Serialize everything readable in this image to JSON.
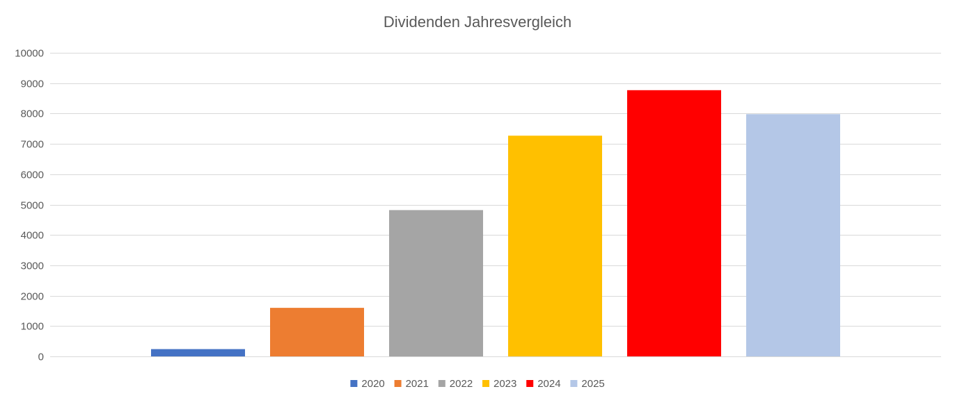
{
  "chart_data": {
    "type": "bar",
    "title": "Dividenden Jahresvergleich",
    "xlabel": "",
    "ylabel": "",
    "ylim": [
      0,
      10000
    ],
    "yticks": [
      0,
      1000,
      2000,
      3000,
      4000,
      5000,
      6000,
      7000,
      8000,
      9000,
      10000
    ],
    "grid": true,
    "legend_position": "bottom",
    "series": [
      {
        "name": "2020",
        "value": 240,
        "color": "#4472C4"
      },
      {
        "name": "2021",
        "value": 1600,
        "color": "#ED7D31"
      },
      {
        "name": "2022",
        "value": 4820,
        "color": "#A5A5A5"
      },
      {
        "name": "2023",
        "value": 7270,
        "color": "#FFC000"
      },
      {
        "name": "2024",
        "value": 8770,
        "color": "#FF0000"
      },
      {
        "name": "2025",
        "value": 7980,
        "color": "#B4C7E7"
      }
    ]
  }
}
